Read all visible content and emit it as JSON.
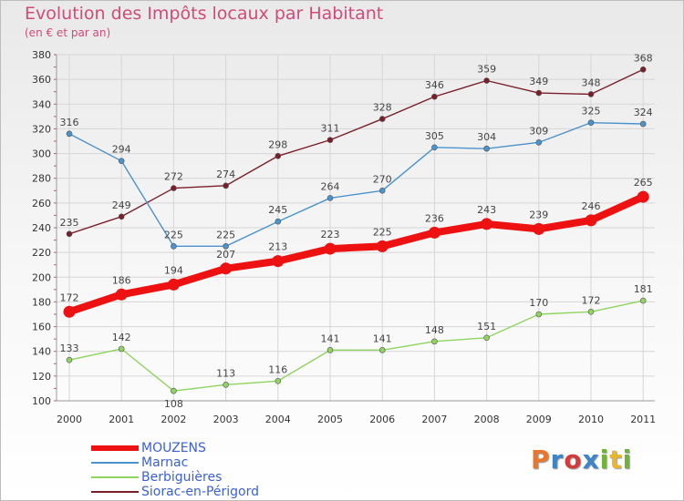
{
  "header": {
    "title": "Evolution des Impôts locaux par Habitant",
    "subtitle": "(en € et par an)"
  },
  "logo": {
    "letters": [
      "P",
      "r",
      "o",
      "x",
      "i",
      "t",
      "i"
    ],
    "colors": [
      "#e8762b",
      "#3e84c6",
      "#d23c3c",
      "#3e84c6",
      "#70b337",
      "#e8b52b",
      "#70b337"
    ]
  },
  "chart_data": {
    "type": "line",
    "title": "Evolution des Impôts locaux par Habitant",
    "subtitle": "(en € et par an)",
    "xlabel": "",
    "ylabel": "",
    "categories": [
      "2000",
      "2001",
      "2002",
      "2003",
      "2004",
      "2005",
      "2006",
      "2007",
      "2008",
      "2009",
      "2010",
      "2011"
    ],
    "ylim": [
      100,
      380
    ],
    "yticks": [
      100,
      120,
      140,
      160,
      180,
      200,
      220,
      240,
      260,
      280,
      300,
      320,
      340,
      360,
      380
    ],
    "grid": true,
    "legend_position": "bottom-left",
    "series": [
      {
        "name": "Siorac-en-Périgord",
        "color": "#7a1f2a",
        "values": [
          235,
          249,
          272,
          274,
          298,
          311,
          328,
          346,
          359,
          349,
          348,
          368
        ]
      },
      {
        "name": "Marnac",
        "color": "#4b93cc",
        "values": [
          316,
          294,
          225,
          225,
          245,
          264,
          270,
          305,
          304,
          309,
          325,
          324
        ]
      },
      {
        "name": "Berbiguières",
        "color": "#8fd460",
        "values": [
          133,
          142,
          108,
          113,
          116,
          141,
          141,
          148,
          151,
          170,
          172,
          181
        ]
      },
      {
        "name": "MOUZENS",
        "color": "#ee1111",
        "values": [
          172,
          186,
          194,
          207,
          213,
          223,
          225,
          236,
          243,
          239,
          246,
          265
        ]
      }
    ],
    "legend": [
      "MOUZENS",
      "Marnac",
      "Berbiguières",
      "Siorac-en-Périgord"
    ]
  }
}
